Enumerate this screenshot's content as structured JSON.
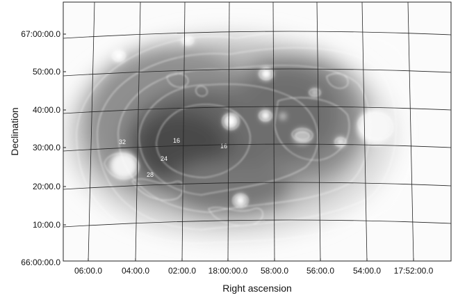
{
  "chart_data": {
    "type": "heatmap",
    "title": "",
    "xlabel": "Right ascension",
    "ylabel": "Declination",
    "x_tick_labels": [
      "06:00.0",
      "04:00.0",
      "02:00.0",
      "18:00:00.0",
      "58:00.0",
      "56:00.0",
      "54:00.0",
      "17:52:00.0"
    ],
    "y_tick_labels": [
      "67:00:00.0",
      "50:00.0",
      "40:00.0",
      "30:00.0",
      "20:00.0",
      "10:00.0",
      "66:00:00.0"
    ],
    "colormap": "inverted grayscale",
    "grid": true,
    "coordinate_grid_color": "#222222",
    "contour_color": "#ffffff",
    "contour_labels": [
      {
        "text": "32"
      },
      {
        "text": "16"
      },
      {
        "text": "16"
      },
      {
        "text": "24"
      },
      {
        "text": "28"
      }
    ]
  }
}
